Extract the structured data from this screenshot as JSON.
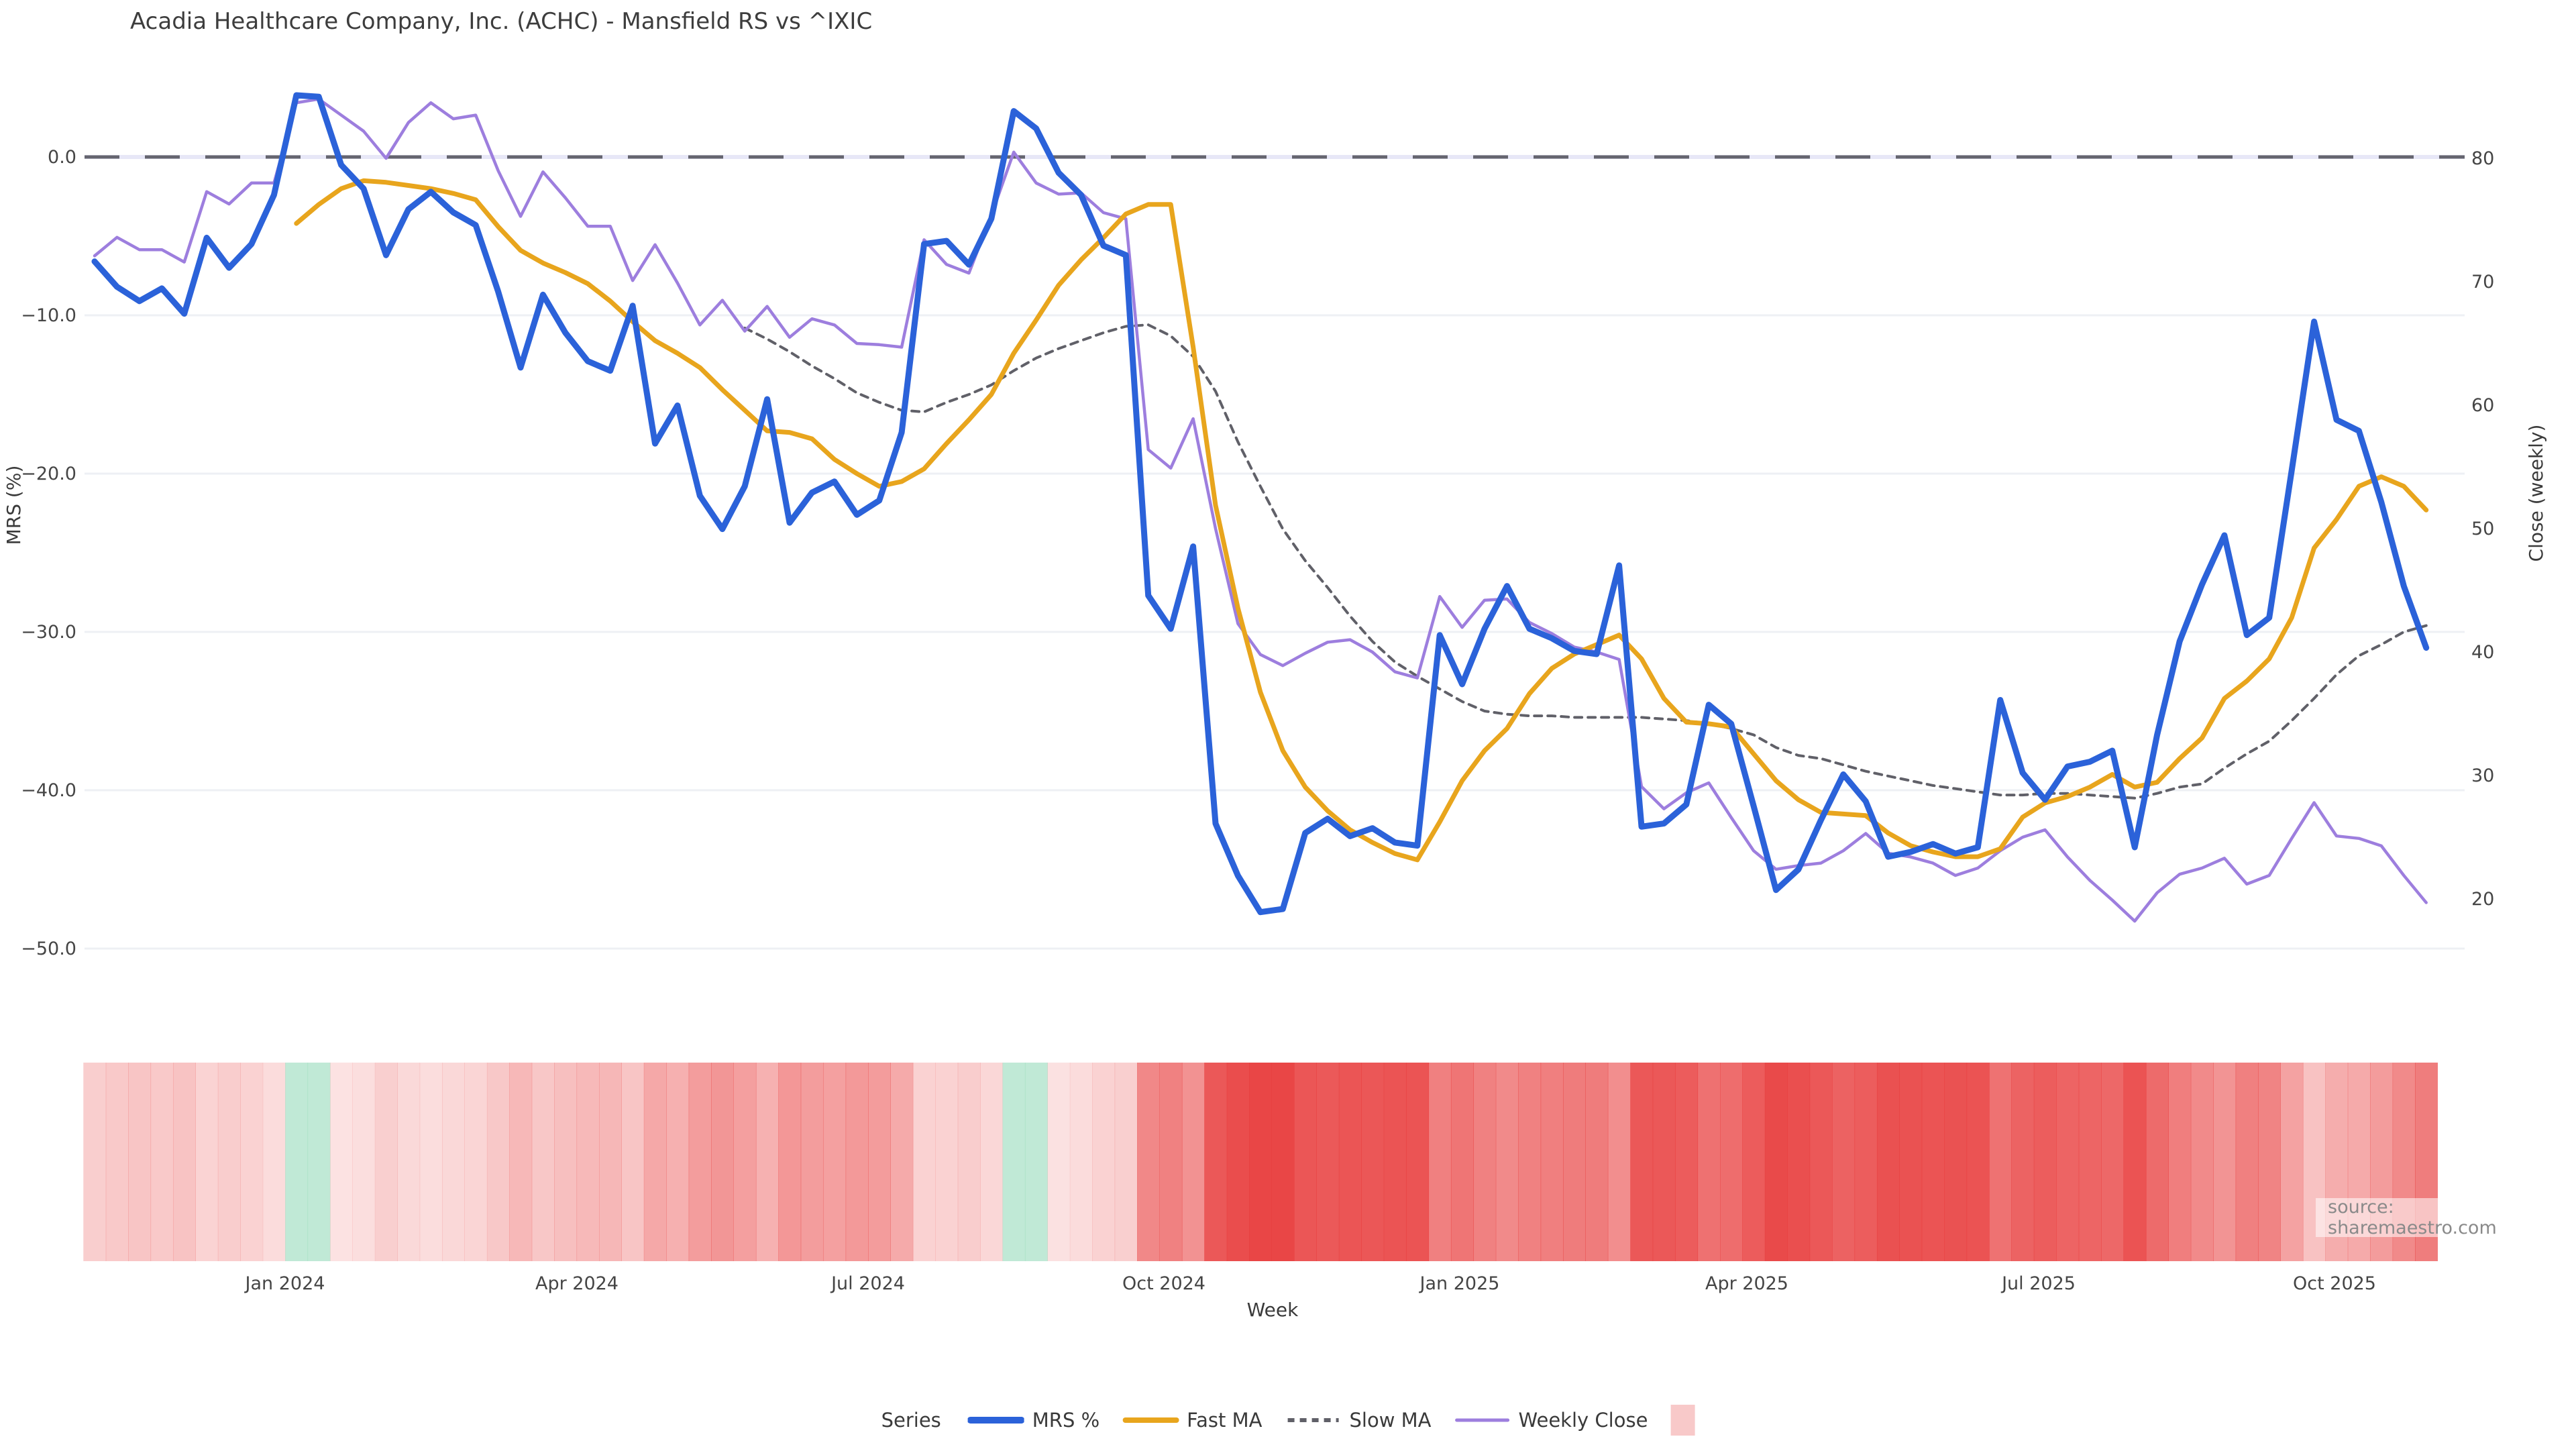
{
  "title": "Acadia Healthcare Company, Inc. (ACHC) - Mansfield RS vs ^IXIC",
  "source": "source: sharemaestro.com",
  "legend": {
    "title": "Series"
  },
  "colors": {
    "mrs": "#2b62d9",
    "fast_ma": "#e8a51d",
    "slow_ma": "#606068",
    "weekly_close": "#9d7ede",
    "zero_line_dash": "#65656f",
    "zero_line_base": "#e7e7f7",
    "gridline": "#eef0f4",
    "heat_negative": "#e83e3e",
    "heat_positive": "#8cd7b4",
    "legend_heat_swatch": "#f8c9c9",
    "tick_text": "#454545",
    "title_text": "#3d3d3d"
  },
  "chart_data": {
    "type": "line",
    "title": "Acadia Healthcare Company, Inc. (ACHC) - Mansfield RS vs ^IXIC",
    "xlabel": "Week",
    "x_unit": "week_index",
    "n_points": 105,
    "x_ticks": [
      {
        "label": "Jan 2024",
        "week": 8.5
      },
      {
        "label": "Apr 2024",
        "week": 21.5
      },
      {
        "label": "Jul 2024",
        "week": 34.5
      },
      {
        "label": "Oct 2024",
        "week": 47.7
      },
      {
        "label": "Jan 2025",
        "week": 60.9
      },
      {
        "label": "Apr 2025",
        "week": 73.7
      },
      {
        "label": "Jul 2025",
        "week": 86.7
      },
      {
        "label": "Oct 2025",
        "week": 99.9
      }
    ],
    "y_left": {
      "title": "MRS (%)",
      "ticks": [
        0,
        -10,
        -20,
        -30,
        -40,
        -50
      ],
      "tick_labels": [
        "0.0",
        "−10.0",
        "−20.0",
        "−30.0",
        "−40.0",
        "−50.0"
      ],
      "range": [
        -53,
        6
      ]
    },
    "y_right": {
      "title": "Close (weekly)",
      "ticks": [
        80,
        70,
        60,
        50,
        40,
        30,
        20
      ],
      "tick_labels": [
        "80",
        "70",
        "60",
        "50",
        "40",
        "30",
        "20"
      ],
      "range": [
        14,
        86
      ]
    },
    "zero_reference_line": 0,
    "legend_position": "bottom",
    "grid": "horizontal-only",
    "series": [
      {
        "name": "MRS %",
        "axis": "left",
        "style": "solid",
        "values": [
          -6.6,
          -8.2,
          -9.1,
          -8.3,
          -9.9,
          -5.1,
          -7.0,
          -5.5,
          -2.4,
          3.9,
          3.8,
          -0.5,
          -2.0,
          -6.2,
          -3.3,
          -2.2,
          -3.5,
          -4.3,
          -8.5,
          -13.3,
          -8.7,
          -11.1,
          -12.9,
          -13.5,
          -9.4,
          -18.1,
          -15.7,
          -21.4,
          -23.5,
          -20.8,
          -15.3,
          -23.1,
          -21.2,
          -20.5,
          -22.6,
          -21.7,
          -17.4,
          -5.5,
          -5.3,
          -6.8,
          -3.9,
          2.9,
          1.8,
          -1.0,
          -2.4,
          -5.6,
          -6.2,
          -27.7,
          -29.8,
          -24.6,
          -42.1,
          -45.4,
          -47.7,
          -47.5,
          -42.7,
          -41.8,
          -42.9,
          -42.4,
          -43.3,
          -43.5,
          -30.2,
          -33.3,
          -29.8,
          -27.1,
          -29.8,
          -30.4,
          -31.2,
          -31.4,
          -25.8,
          -42.3,
          -42.1,
          -40.9,
          -34.6,
          -35.8,
          -41.0,
          -46.3,
          -45.0,
          -41.9,
          -39.0,
          -40.7,
          -44.2,
          -43.9,
          -43.4,
          -44.0,
          -43.6,
          -34.3,
          -38.9,
          -40.6,
          -38.5,
          -38.2,
          -37.5,
          -43.6,
          -36.5,
          -30.6,
          -27.0,
          -23.9,
          -30.2,
          -29.1,
          -19.8,
          -10.4,
          -16.6,
          -17.3,
          -21.8,
          -27.1,
          -31.0
        ]
      },
      {
        "name": "Fast MA",
        "axis": "left",
        "style": "solid",
        "values": [
          null,
          null,
          null,
          null,
          null,
          null,
          null,
          null,
          null,
          -4.2,
          -3.0,
          -2.0,
          -1.5,
          -1.6,
          -1.8,
          -2.0,
          -2.3,
          -2.7,
          -4.4,
          -5.9,
          -6.7,
          -7.3,
          -8.0,
          -9.1,
          -10.4,
          -11.6,
          -12.4,
          -13.3,
          -14.7,
          -16.0,
          -17.3,
          -17.4,
          -17.8,
          -19.1,
          -20.0,
          -20.8,
          -20.5,
          -19.7,
          -18.1,
          -16.6,
          -15.0,
          -12.4,
          -10.3,
          -8.1,
          -6.5,
          -5.1,
          -3.6,
          -3.0,
          -3.0,
          -12.0,
          -22.0,
          -28.5,
          -33.8,
          -37.5,
          -39.8,
          -41.3,
          -42.5,
          -43.3,
          -44.0,
          -44.4,
          -42.0,
          -39.4,
          -37.5,
          -36.1,
          -33.9,
          -32.3,
          -31.4,
          -30.8,
          -30.2,
          -31.7,
          -34.2,
          -35.7,
          -35.8,
          -36.0,
          -37.7,
          -39.4,
          -40.6,
          -41.4,
          -41.5,
          -41.6,
          -42.7,
          -43.5,
          -43.9,
          -44.2,
          -44.2,
          -43.7,
          -41.7,
          -40.8,
          -40.4,
          -39.8,
          -39.0,
          -39.8,
          -39.5,
          -38.0,
          -36.7,
          -34.2,
          -33.1,
          -31.7,
          -29.1,
          -24.7,
          -22.9,
          -20.8,
          -20.2,
          -20.8,
          -22.3
        ]
      },
      {
        "name": "Slow MA",
        "axis": "left",
        "style": "dotted",
        "values": [
          null,
          null,
          null,
          null,
          null,
          null,
          null,
          null,
          null,
          null,
          null,
          null,
          null,
          null,
          null,
          null,
          null,
          null,
          null,
          null,
          null,
          null,
          null,
          null,
          null,
          null,
          null,
          null,
          null,
          -10.8,
          -11.5,
          -12.3,
          -13.2,
          -14.0,
          -14.9,
          -15.5,
          -16.0,
          -16.1,
          -15.5,
          -15.0,
          -14.4,
          -13.5,
          -12.7,
          -12.1,
          -11.6,
          -11.1,
          -10.7,
          -10.6,
          -11.3,
          -12.6,
          -14.8,
          -18.0,
          -20.8,
          -23.5,
          -25.5,
          -27.2,
          -29.0,
          -30.6,
          -31.9,
          -32.8,
          -33.6,
          -34.4,
          -35.0,
          -35.2,
          -35.3,
          -35.3,
          -35.4,
          -35.4,
          -35.4,
          -35.4,
          -35.5,
          -35.6,
          -35.8,
          -36.1,
          -36.5,
          -37.3,
          -37.8,
          -38.0,
          -38.4,
          -38.8,
          -39.1,
          -39.4,
          -39.7,
          -39.9,
          -40.1,
          -40.3,
          -40.3,
          -40.2,
          -40.2,
          -40.3,
          -40.4,
          -40.5,
          -40.2,
          -39.8,
          -39.6,
          -38.6,
          -37.7,
          -36.9,
          -35.6,
          -34.2,
          -32.7,
          -31.5,
          -30.8,
          -30.0,
          -29.6
        ]
      },
      {
        "name": "Weekly Close",
        "axis": "right",
        "style": "solid",
        "values": [
          72.1,
          73.6,
          72.6,
          72.6,
          71.6,
          77.3,
          76.3,
          78.0,
          78.0,
          84.5,
          84.8,
          83.5,
          82.2,
          80.0,
          82.9,
          84.5,
          83.2,
          83.5,
          79.0,
          75.3,
          78.9,
          76.8,
          74.5,
          74.5,
          70.1,
          73.0,
          69.9,
          66.5,
          68.5,
          66.0,
          68.0,
          65.5,
          67.0,
          66.5,
          65.0,
          64.9,
          64.7,
          73.4,
          71.4,
          70.7,
          75.4,
          80.5,
          78.0,
          77.1,
          77.2,
          75.6,
          75.1,
          56.4,
          54.9,
          58.9,
          50.0,
          42.3,
          39.8,
          38.9,
          39.9,
          40.8,
          41.0,
          40.0,
          38.4,
          37.9,
          44.5,
          42.0,
          44.2,
          44.3,
          42.4,
          41.5,
          40.4,
          40.0,
          39.4,
          29.1,
          27.3,
          28.6,
          29.4,
          26.6,
          23.9,
          22.4,
          22.7,
          22.9,
          23.9,
          25.3,
          23.7,
          23.4,
          22.9,
          21.9,
          22.5,
          23.9,
          25.0,
          25.6,
          23.4,
          21.5,
          19.9,
          18.2,
          20.5,
          22.0,
          22.5,
          23.3,
          21.2,
          21.9,
          24.9,
          27.8,
          25.1,
          24.9,
          24.3,
          21.9,
          19.7
        ]
      }
    ],
    "heatmap_strip": {
      "encodes": "MRS % value per week (red intensity = more negative, green = positive)",
      "rows": 1,
      "n_cells": 105
    }
  }
}
